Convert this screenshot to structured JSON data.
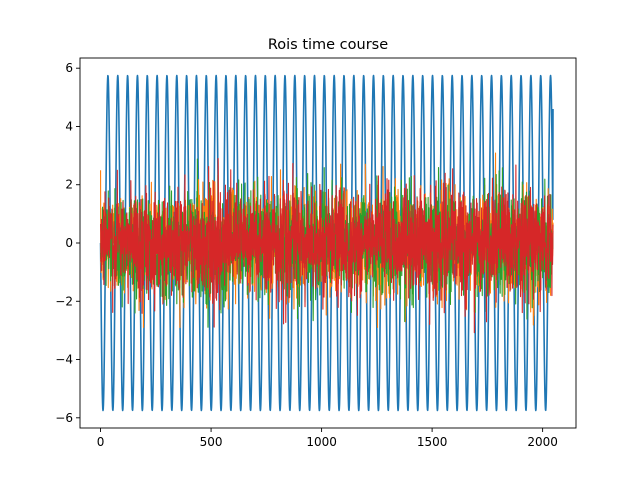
{
  "chart_data": {
    "type": "line",
    "title": "Rois time course",
    "xlabel": "",
    "ylabel": "",
    "xlim": [
      -93,
      2151
    ],
    "ylim": [
      -6.35,
      6.35
    ],
    "x_ticks": [
      0,
      500,
      1000,
      1500,
      2000
    ],
    "y_ticks": [
      -6,
      -4,
      -2,
      0,
      2,
      4,
      6
    ],
    "x_tick_labels": [
      "0",
      "500",
      "1000",
      "1500",
      "2000"
    ],
    "y_tick_labels": [
      "−6",
      "−4",
      "−2",
      "0",
      "2",
      "4",
      "6"
    ],
    "grid": false,
    "legend": "none",
    "n_samples": 2048,
    "series": [
      {
        "kind": "sine",
        "amplitude": 5.75,
        "cycles": 46,
        "final_value": 4.6,
        "color": "#1f77b4"
      },
      {
        "kind": "noise",
        "std": 0.9,
        "y_min": -2.9,
        "y_max": 3.2,
        "color": "#ff7f0e"
      },
      {
        "kind": "noise",
        "std": 0.9,
        "y_min": -2.9,
        "y_max": 3.4,
        "color": "#2ca02c"
      },
      {
        "kind": "noise",
        "std": 0.9,
        "y_min": -4.0,
        "y_max": 2.9,
        "color": "#d62728"
      }
    ]
  }
}
